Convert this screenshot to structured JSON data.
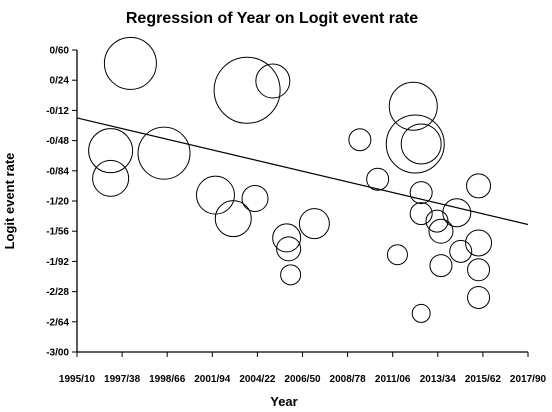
{
  "chart_data": {
    "type": "scatter",
    "title": "Regression of Year on Logit event rate",
    "xlabel": "Year",
    "ylabel": "Logit event rate",
    "x_ticks": [
      "1995/10",
      "1997/38",
      "1998/66",
      "2001/94",
      "2004/22",
      "2006/50",
      "2008/78",
      "2011/06",
      "2013/34",
      "2015/62",
      "2017/90"
    ],
    "y_ticks": [
      "0/60",
      "0/24",
      "-0/12",
      "-0/48",
      "-0/84",
      "-1/20",
      "-1/56",
      "-1/92",
      "-2/28",
      "-2/64",
      "-3/00"
    ],
    "xlim": [
      1995.1,
      2017.9
    ],
    "ylim": [
      -3.0,
      0.6
    ],
    "grid": false,
    "legend": "none",
    "marker": "open circle, size proportional to study weight",
    "points": [
      {
        "x": 1996.8,
        "y": -0.6,
        "r": 22
      },
      {
        "x": 1996.8,
        "y": -0.93,
        "r": 18
      },
      {
        "x": 1997.8,
        "y": 0.44,
        "r": 26
      },
      {
        "x": 1999.5,
        "y": -0.63,
        "r": 26
      },
      {
        "x": 2002.1,
        "y": -1.13,
        "r": 19
      },
      {
        "x": 2003.0,
        "y": -1.41,
        "r": 18
      },
      {
        "x": 2003.7,
        "y": 0.12,
        "r": 33
      },
      {
        "x": 2004.1,
        "y": -1.17,
        "r": 13
      },
      {
        "x": 2005.0,
        "y": 0.23,
        "r": 17
      },
      {
        "x": 2005.7,
        "y": -1.64,
        "r": 14
      },
      {
        "x": 2005.8,
        "y": -1.77,
        "r": 12
      },
      {
        "x": 2005.9,
        "y": -2.08,
        "r": 10
      },
      {
        "x": 2007.1,
        "y": -1.47,
        "r": 15
      },
      {
        "x": 2009.4,
        "y": -0.47,
        "r": 11
      },
      {
        "x": 2010.3,
        "y": -0.94,
        "r": 11
      },
      {
        "x": 2011.3,
        "y": -1.84,
        "r": 10
      },
      {
        "x": 2012.1,
        "y": -0.07,
        "r": 24
      },
      {
        "x": 2012.2,
        "y": -0.52,
        "r": 29
      },
      {
        "x": 2012.5,
        "y": -0.52,
        "r": 20
      },
      {
        "x": 2012.5,
        "y": -1.1,
        "r": 11
      },
      {
        "x": 2012.5,
        "y": -1.35,
        "r": 11
      },
      {
        "x": 2012.5,
        "y": -2.54,
        "r": 9
      },
      {
        "x": 2013.3,
        "y": -1.44,
        "r": 11
      },
      {
        "x": 2013.5,
        "y": -1.56,
        "r": 12
      },
      {
        "x": 2013.5,
        "y": -1.97,
        "r": 11
      },
      {
        "x": 2014.3,
        "y": -1.34,
        "r": 14
      },
      {
        "x": 2014.5,
        "y": -1.8,
        "r": 11
      },
      {
        "x": 2015.4,
        "y": -1.02,
        "r": 12
      },
      {
        "x": 2015.4,
        "y": -1.7,
        "r": 13
      },
      {
        "x": 2015.4,
        "y": -2.02,
        "r": 11
      },
      {
        "x": 2015.4,
        "y": -2.35,
        "r": 11
      }
    ],
    "regression_line": {
      "x": [
        1995.1,
        2017.9
      ],
      "y": [
        -0.21,
        -1.48
      ]
    }
  }
}
